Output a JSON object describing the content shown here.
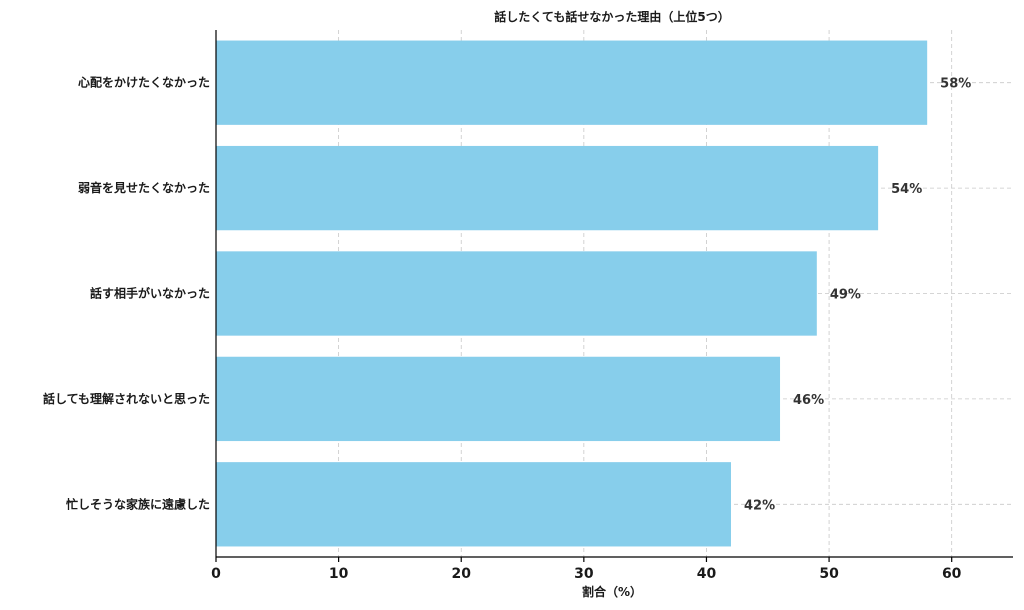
{
  "chart_data": {
    "type": "bar",
    "orientation": "horizontal",
    "title": "話したくても話せなかった理由（上位5つ）",
    "xlabel": "割合（%）",
    "ylabel": "",
    "xlim": [
      0,
      65
    ],
    "xticks": [
      0,
      10,
      20,
      30,
      40,
      50,
      60
    ],
    "grid": true,
    "bar_color": "#87CEEB",
    "categories": [
      "心配をかけたくなかった",
      "弱音を見せたくなかった",
      "話す相手がいなかった",
      "話しても理解されないと思った",
      "忙しそうな家族に遠慮した"
    ],
    "values": [
      58,
      54,
      49,
      46,
      42
    ],
    "data_labels": [
      "58%",
      "54%",
      "49%",
      "46%",
      "42%"
    ]
  }
}
